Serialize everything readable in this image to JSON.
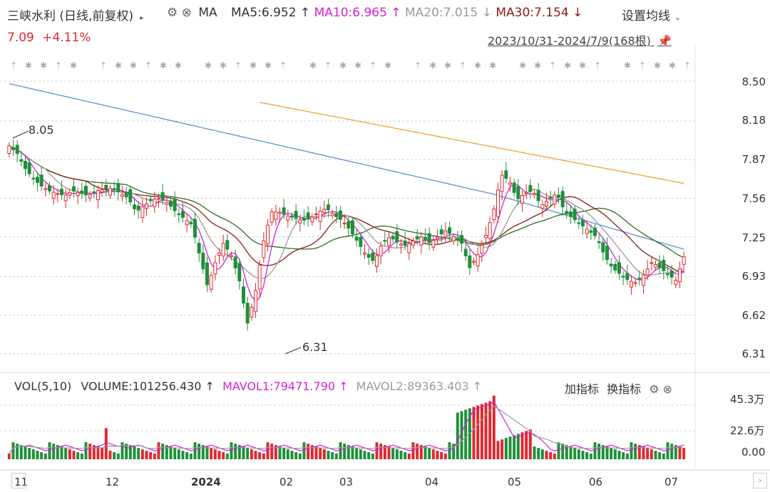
{
  "header": {
    "title": "三峡水利 (日线,前复权)",
    "indicator_name": "MA",
    "ma5": "MA5:6.952",
    "ma10": "MA10:6.965",
    "ma20": "MA20:7.015",
    "ma30": "MA30:7.154",
    "settings_label": "设置均线",
    "price": "7.09",
    "change": "+4.11%",
    "range": "2023/10/31-2024/7/9(168根)"
  },
  "price_axis": [
    "8.50",
    "8.18",
    "7.87",
    "7.56",
    "7.25",
    "6.93",
    "6.62",
    "6.31"
  ],
  "annotations": {
    "high": "8.05",
    "low": "6.31"
  },
  "volume_header": {
    "vol": "VOL(5,10)",
    "volume": "VOLUME:101256.430",
    "mavol1": "MAVOL1:79471.790",
    "mavol2": "MAVOL2:89363.403",
    "add_indicator": "加指标",
    "switch_indicator": "换指标"
  },
  "volume_axis": [
    "45.3万",
    "22.6万",
    "0.00"
  ],
  "x_axis": [
    "11",
    "12",
    "2024",
    "02",
    "03",
    "04",
    "05",
    "06",
    "07"
  ],
  "colors": {
    "up": "#e0282e",
    "down": "#1f8f3a",
    "ma5": "#d61fd6",
    "ma10": "#9a9a9a",
    "ma20": "#8b1a1a",
    "ma30": "#2e6b1f",
    "ma60": "#5b8fd6",
    "ma120": "#f0a030"
  },
  "chart_data": {
    "type": "candlestick",
    "x_range": [
      "2023/10/31",
      "2024/7/9"
    ],
    "bars": 168,
    "ylim": [
      6.31,
      8.5
    ],
    "y_ticks": [
      8.5,
      8.18,
      7.87,
      7.56,
      7.25,
      6.93,
      6.62,
      6.31
    ],
    "high": 8.05,
    "low": 6.31,
    "last_close": 7.09,
    "close_path": [
      7.98,
      7.92,
      7.8,
      7.72,
      7.66,
      7.62,
      7.6,
      7.58,
      7.62,
      7.6,
      7.58,
      7.62,
      7.63,
      7.64,
      7.6,
      7.56,
      7.45,
      7.5,
      7.55,
      7.56,
      7.52,
      7.45,
      7.4,
      7.35,
      7.1,
      6.85,
      7.05,
      7.2,
      7.1,
      6.9,
      6.55,
      6.8,
      7.2,
      7.45,
      7.45,
      7.42,
      7.4,
      7.38,
      7.4,
      7.45,
      7.48,
      7.42,
      7.38,
      7.3,
      7.2,
      7.1,
      7.05,
      7.2,
      7.25,
      7.2,
      7.18,
      7.22,
      7.25,
      7.2,
      7.25,
      7.3,
      7.25,
      7.2,
      7.0,
      7.1,
      7.25,
      7.45,
      7.75,
      7.7,
      7.55,
      7.6,
      7.62,
      7.5,
      7.55,
      7.6,
      7.45,
      7.4,
      7.35,
      7.3,
      7.25,
      7.1,
      7.0,
      6.95,
      6.9,
      6.88,
      6.95,
      7.05,
      7.0,
      6.95,
      6.9,
      7.09
    ],
    "volume_axis": [
      "45.3万",
      "22.6万",
      "0.00"
    ],
    "x_labels": [
      "11",
      "12",
      "2024",
      "02",
      "03",
      "04",
      "05",
      "06",
      "07"
    ]
  }
}
